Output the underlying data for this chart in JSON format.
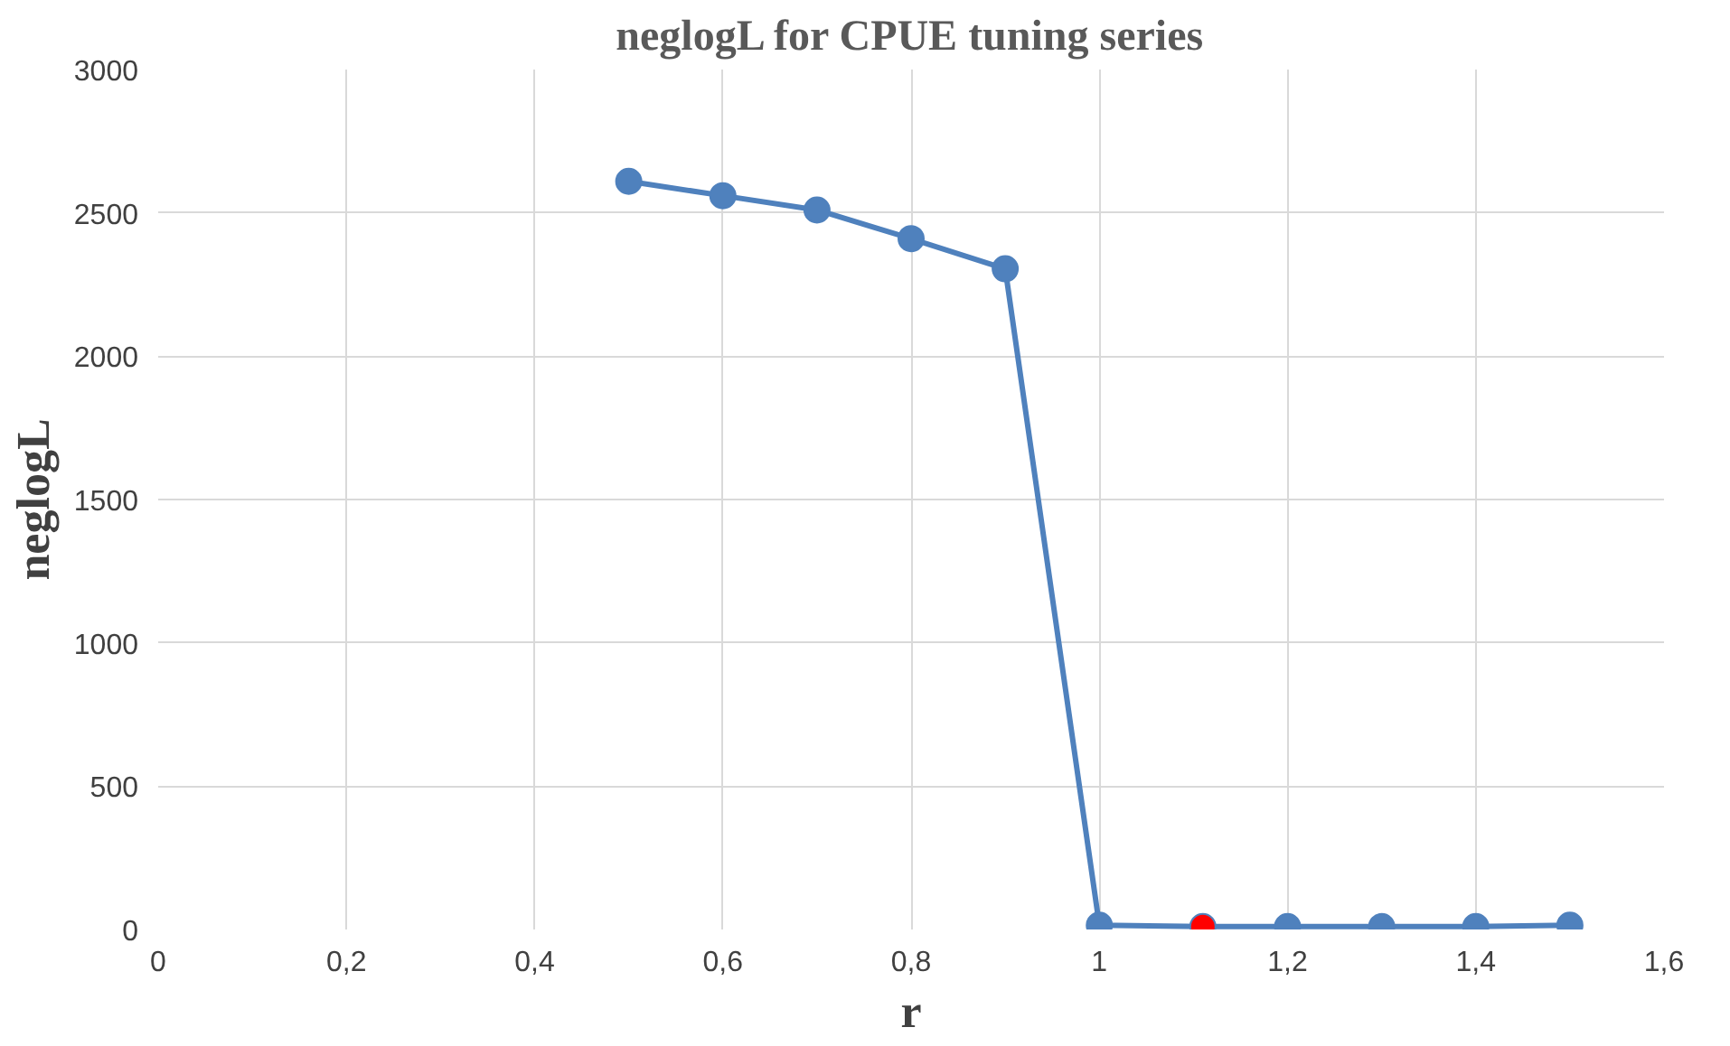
{
  "chart_data": {
    "type": "line",
    "title": "neglogL for CPUE tuning series",
    "xlabel": "r",
    "ylabel": "neglogL",
    "x": [
      0.5,
      0.6,
      0.7,
      0.8,
      0.9,
      1.0,
      1.11,
      1.2,
      1.3,
      1.4,
      1.5
    ],
    "series": [
      {
        "color": "#4f81bd",
        "colors": [
          "#4f81bd",
          "#4f81bd",
          "#4f81bd",
          "#4f81bd",
          "#4f81bd",
          "#4f81bd",
          "#ff0000",
          "#4f81bd",
          "#4f81bd",
          "#4f81bd",
          "#4f81bd"
        ],
        "values": [
          2610,
          2560,
          2510,
          2410,
          2305,
          15,
          10,
          10,
          10,
          10,
          15
        ]
      }
    ],
    "xlim": [
      0,
      1.6
    ],
    "xticks": [
      {
        "value": 0,
        "label": "0"
      },
      {
        "value": 0.2,
        "label": "0,2"
      },
      {
        "value": 0.4,
        "label": "0,4"
      },
      {
        "value": 0.6,
        "label": "0,6"
      },
      {
        "value": 0.8,
        "label": "0,8"
      },
      {
        "value": 1,
        "label": "1"
      },
      {
        "value": 1.2,
        "label": "1,2"
      },
      {
        "value": 1.4,
        "label": "1,4"
      },
      {
        "value": 1.6,
        "label": "1,6"
      }
    ],
    "ylim": [
      0,
      3000
    ],
    "yticks": [
      0,
      500,
      1000,
      1500,
      2000,
      2500,
      3000
    ],
    "grid": true,
    "marker": "circle",
    "line_style": "solid"
  }
}
